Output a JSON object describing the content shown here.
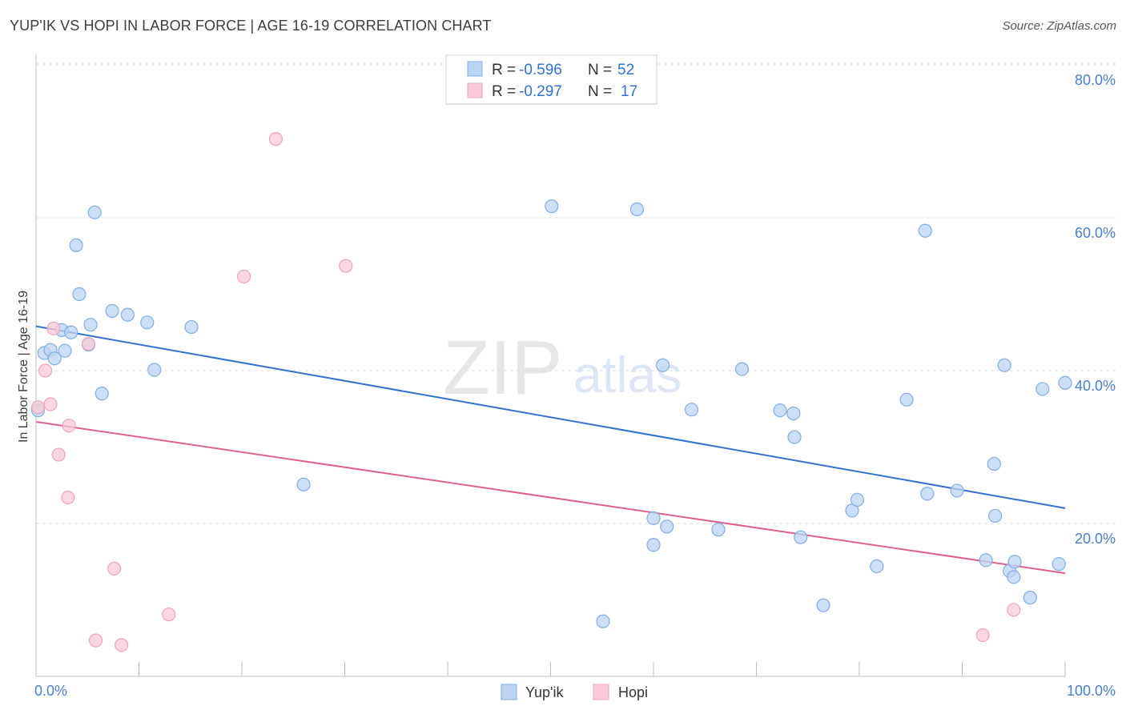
{
  "header": {
    "title": "YUP'IK VS HOPI IN LABOR FORCE | AGE 16-19 CORRELATION CHART",
    "source": "Source: ZipAtlas.com"
  },
  "colors": {
    "yupik_fill": "#bcd4f3",
    "yupik_stroke": "#7eaee6",
    "yupik_line": "#2f72d1",
    "hopi_fill": "#f9c9d7",
    "hopi_stroke": "#eea4bb",
    "hopi_line": "#e0608c",
    "tick_label": "#4a7fd0",
    "grid": "#dddddd"
  },
  "watermark": {
    "zip": "ZIP",
    "atlas": "atlas"
  },
  "legend_stats": {
    "r_label": "R =",
    "n_label": "N =",
    "yupik": {
      "r": "-0.596",
      "n": "52"
    },
    "hopi": {
      "r": "-0.297",
      "n": "17"
    }
  },
  "chart_data": {
    "type": "scatter",
    "title": "YUP'IK VS HOPI IN LABOR FORCE | AGE 16-19 CORRELATION CHART",
    "xlabel": "",
    "ylabel": "In Labor Force | Age 16-19",
    "xlim": [
      0,
      100
    ],
    "ylim": [
      0,
      82
    ],
    "x_tick_labels": [
      "0.0%",
      "100.0%"
    ],
    "y_ticks": [
      20,
      40,
      60,
      80
    ],
    "y_tick_labels": [
      "20.0%",
      "40.0%",
      "60.0%",
      "80.0%"
    ],
    "grid": true,
    "series": [
      {
        "name": "Yup'ik",
        "r": -0.596,
        "n": 52,
        "trend": {
          "x": [
            0,
            100
          ],
          "y": [
            45.8,
            22.0
          ]
        },
        "points": [
          [
            0.2,
            34.8
          ],
          [
            0.8,
            42.3
          ],
          [
            1.4,
            42.7
          ],
          [
            1.8,
            41.6
          ],
          [
            2.5,
            45.3
          ],
          [
            2.8,
            42.6
          ],
          [
            3.4,
            45.0
          ],
          [
            3.9,
            56.4
          ],
          [
            4.2,
            50.0
          ],
          [
            5.1,
            43.4
          ],
          [
            5.3,
            46.0
          ],
          [
            5.7,
            60.7
          ],
          [
            6.4,
            37.0
          ],
          [
            7.4,
            47.8
          ],
          [
            8.9,
            47.3
          ],
          [
            10.8,
            46.3
          ],
          [
            11.5,
            40.1
          ],
          [
            15.1,
            45.7
          ],
          [
            26.0,
            25.1
          ],
          [
            50.1,
            61.5
          ],
          [
            55.1,
            7.2
          ],
          [
            58.4,
            61.1
          ],
          [
            60.0,
            20.7
          ],
          [
            60.0,
            17.2
          ],
          [
            60.9,
            40.7
          ],
          [
            61.3,
            19.6
          ],
          [
            63.7,
            34.9
          ],
          [
            66.3,
            19.2
          ],
          [
            68.6,
            40.2
          ],
          [
            72.3,
            34.8
          ],
          [
            73.7,
            31.3
          ],
          [
            73.6,
            34.4
          ],
          [
            74.3,
            18.2
          ],
          [
            76.5,
            9.3
          ],
          [
            79.3,
            21.7
          ],
          [
            79.8,
            23.1
          ],
          [
            81.7,
            14.4
          ],
          [
            84.6,
            36.2
          ],
          [
            86.6,
            23.9
          ],
          [
            86.4,
            58.3
          ],
          [
            89.5,
            24.3
          ],
          [
            92.3,
            15.2
          ],
          [
            93.1,
            27.8
          ],
          [
            93.2,
            21.0
          ],
          [
            94.6,
            13.8
          ],
          [
            94.1,
            40.7
          ],
          [
            95.0,
            13.0
          ],
          [
            95.1,
            15.0
          ],
          [
            96.6,
            10.3
          ],
          [
            97.8,
            37.6
          ],
          [
            100.0,
            38.4
          ],
          [
            99.4,
            14.7
          ]
        ]
      },
      {
        "name": "Hopi",
        "r": -0.297,
        "n": 17,
        "trend": {
          "x": [
            0,
            100
          ],
          "y": [
            33.3,
            13.5
          ]
        },
        "points": [
          [
            0.2,
            35.2
          ],
          [
            0.9,
            40.0
          ],
          [
            1.4,
            35.6
          ],
          [
            1.7,
            45.5
          ],
          [
            2.2,
            29.0
          ],
          [
            3.1,
            23.4
          ],
          [
            3.2,
            32.8
          ],
          [
            5.1,
            43.5
          ],
          [
            5.8,
            4.7
          ],
          [
            7.6,
            14.1
          ],
          [
            8.3,
            4.1
          ],
          [
            12.9,
            8.1
          ],
          [
            20.2,
            52.3
          ],
          [
            23.3,
            70.3
          ],
          [
            30.1,
            53.7
          ],
          [
            92.0,
            5.4
          ],
          [
            95.0,
            8.7
          ]
        ]
      }
    ]
  }
}
